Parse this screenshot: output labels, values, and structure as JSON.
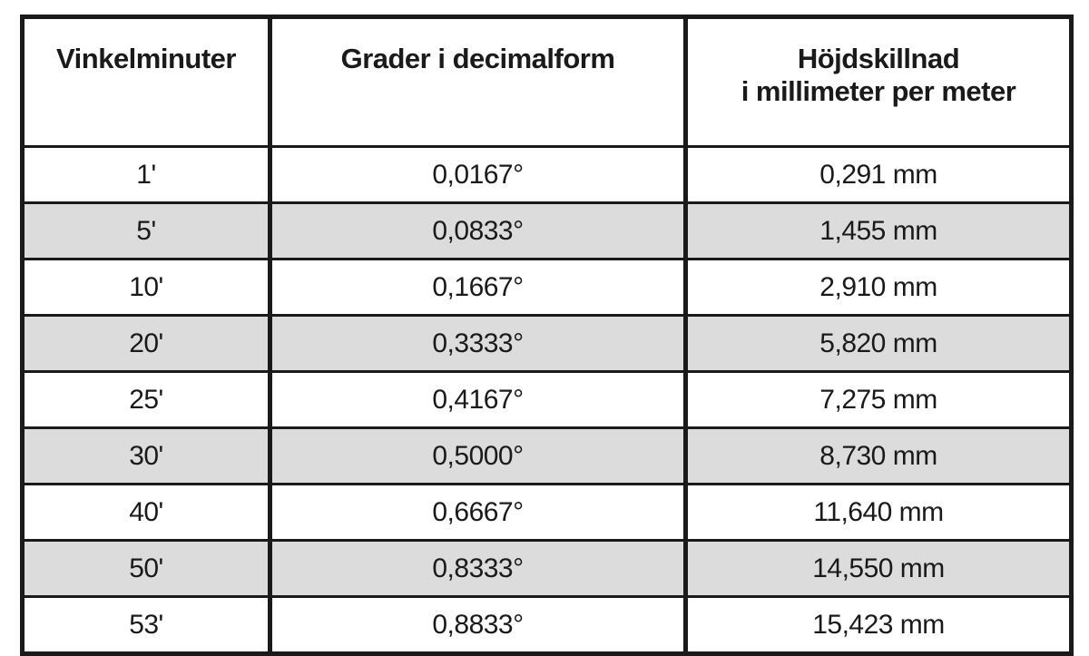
{
  "colors": {
    "row_alt_background": "#dcdcdc",
    "border": "#1a1a1a",
    "text": "#1a1a1a",
    "background": "#ffffff"
  },
  "table": {
    "header": {
      "col1": "Vinkelminuter",
      "col2": "Grader i decimalform",
      "col3_line1": "Höjdskillnad",
      "col3_line2": "i millimeter per meter"
    },
    "rows": [
      {
        "minutes": "1'",
        "degrees": "0,0167°",
        "height": "0,291 mm"
      },
      {
        "minutes": "5'",
        "degrees": "0,0833°",
        "height": "1,455 mm"
      },
      {
        "minutes": "10'",
        "degrees": "0,1667°",
        "height": "2,910 mm"
      },
      {
        "minutes": "20'",
        "degrees": "0,3333°",
        "height": "5,820 mm"
      },
      {
        "minutes": "25'",
        "degrees": "0,4167°",
        "height": "7,275 mm"
      },
      {
        "minutes": "30'",
        "degrees": "0,5000°",
        "height": "8,730 mm"
      },
      {
        "minutes": "40'",
        "degrees": "0,6667°",
        "height": "11,640 mm"
      },
      {
        "minutes": "50'",
        "degrees": "0,8333°",
        "height": "14,550 mm"
      },
      {
        "minutes": "53'",
        "degrees": "0,8833°",
        "height": "15,423 mm"
      }
    ]
  }
}
